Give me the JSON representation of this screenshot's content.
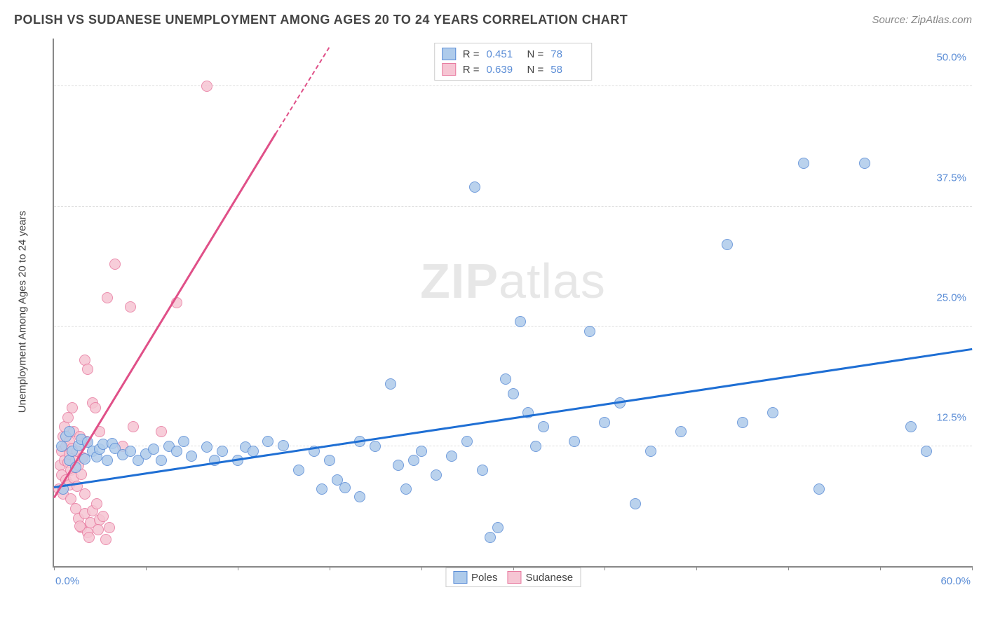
{
  "title": "POLISH VS SUDANESE UNEMPLOYMENT AMONG AGES 20 TO 24 YEARS CORRELATION CHART",
  "source": "Source: ZipAtlas.com",
  "watermark_zip": "ZIP",
  "watermark_atlas": "atlas",
  "ylabel": "Unemployment Among Ages 20 to 24 years",
  "chart": {
    "type": "scatter",
    "background_color": "#ffffff",
    "grid_color": "#dddddd",
    "axis_color": "#888888",
    "tick_label_color": "#5b8dd6",
    "xlim": [
      0,
      60
    ],
    "ylim": [
      0,
      55
    ],
    "x_tick_positions": [
      0,
      6,
      12,
      18,
      24,
      30,
      36,
      42,
      48,
      54,
      60
    ],
    "x_tick_labels": {
      "left": "0.0%",
      "right": "60.0%"
    },
    "y_gridlines": [
      12.5,
      25,
      37.5,
      50
    ],
    "y_tick_labels": [
      "12.5%",
      "25.0%",
      "37.5%",
      "50.0%"
    ],
    "marker_radius": 8,
    "marker_border_width": 1.2,
    "trend_line_width": 3,
    "series": [
      {
        "name": "Poles",
        "fill_color": "#aecbeb",
        "stroke_color": "#5b8dd6",
        "line_color": "#1f6fd4",
        "R": "0.451",
        "N": "78",
        "trend": {
          "x1": 0,
          "y1": 8.1,
          "x2": 60,
          "y2": 22.5
        },
        "points": [
          [
            0.5,
            12.5
          ],
          [
            0.6,
            8.0
          ],
          [
            0.8,
            13.5
          ],
          [
            1.0,
            11.0
          ],
          [
            1.0,
            14.0
          ],
          [
            1.2,
            12.0
          ],
          [
            1.4,
            10.3
          ],
          [
            1.6,
            12.6
          ],
          [
            1.8,
            13.2
          ],
          [
            2.0,
            11.2
          ],
          [
            2.2,
            12.9
          ],
          [
            2.5,
            12.0
          ],
          [
            2.8,
            11.4
          ],
          [
            3.0,
            12.2
          ],
          [
            3.2,
            12.7
          ],
          [
            3.5,
            11.0
          ],
          [
            3.8,
            12.8
          ],
          [
            4.0,
            12.3
          ],
          [
            4.5,
            11.6
          ],
          [
            5.0,
            12.0
          ],
          [
            5.5,
            11.0
          ],
          [
            6.0,
            11.7
          ],
          [
            6.5,
            12.2
          ],
          [
            7.0,
            11.0
          ],
          [
            7.5,
            12.5
          ],
          [
            8.0,
            12.0
          ],
          [
            8.5,
            13.0
          ],
          [
            9.0,
            11.5
          ],
          [
            10.0,
            12.4
          ],
          [
            10.5,
            11.0
          ],
          [
            11.0,
            12.0
          ],
          [
            12.0,
            11.0
          ],
          [
            12.5,
            12.4
          ],
          [
            13.0,
            12.0
          ],
          [
            14.0,
            13.0
          ],
          [
            15.0,
            12.6
          ],
          [
            16.0,
            10.0
          ],
          [
            17.0,
            12.0
          ],
          [
            17.5,
            8.0
          ],
          [
            18.0,
            11.0
          ],
          [
            18.5,
            9.0
          ],
          [
            19.0,
            8.2
          ],
          [
            20.0,
            13.0
          ],
          [
            20.0,
            7.2
          ],
          [
            21.0,
            12.5
          ],
          [
            22.0,
            19.0
          ],
          [
            22.5,
            10.5
          ],
          [
            23.0,
            8.0
          ],
          [
            23.5,
            11.0
          ],
          [
            24.0,
            12.0
          ],
          [
            25.0,
            9.5
          ],
          [
            26.0,
            11.5
          ],
          [
            27.0,
            13.0
          ],
          [
            27.5,
            39.5
          ],
          [
            28.0,
            10.0
          ],
          [
            28.5,
            3.0
          ],
          [
            29.0,
            4.0
          ],
          [
            29.5,
            19.5
          ],
          [
            30.0,
            18.0
          ],
          [
            30.5,
            25.5
          ],
          [
            31.0,
            16.0
          ],
          [
            31.5,
            12.5
          ],
          [
            32.0,
            14.5
          ],
          [
            34.0,
            13.0
          ],
          [
            35.0,
            24.5
          ],
          [
            36.0,
            15.0
          ],
          [
            37.0,
            17.0
          ],
          [
            38.0,
            6.5
          ],
          [
            39.0,
            12.0
          ],
          [
            41.0,
            14.0
          ],
          [
            44.0,
            33.5
          ],
          [
            45.0,
            15.0
          ],
          [
            47.0,
            16.0
          ],
          [
            49.0,
            42.0
          ],
          [
            50.0,
            8.0
          ],
          [
            53.0,
            42.0
          ],
          [
            56.0,
            14.5
          ],
          [
            57.0,
            12.0
          ]
        ]
      },
      {
        "name": "Sudanese",
        "fill_color": "#f6c5d3",
        "stroke_color": "#e87ba0",
        "line_color": "#e05088",
        "R": "0.639",
        "N": "58",
        "trend": {
          "x1": 0,
          "y1": 7.0,
          "x2": 14.5,
          "y2": 45.0
        },
        "trend_dashed": {
          "x1": 14.5,
          "y1": 45.0,
          "x2": 18.0,
          "y2": 54.0
        },
        "points": [
          [
            0.3,
            8.0
          ],
          [
            0.4,
            10.5
          ],
          [
            0.5,
            9.5
          ],
          [
            0.5,
            12.0
          ],
          [
            0.6,
            7.5
          ],
          [
            0.6,
            13.5
          ],
          [
            0.7,
            11.0
          ],
          [
            0.7,
            14.5
          ],
          [
            0.8,
            9.0
          ],
          [
            0.8,
            12.5
          ],
          [
            0.9,
            10.8
          ],
          [
            0.9,
            15.5
          ],
          [
            1.0,
            8.5
          ],
          [
            1.0,
            11.7
          ],
          [
            1.0,
            13.0
          ],
          [
            1.1,
            7.0
          ],
          [
            1.1,
            10.0
          ],
          [
            1.2,
            12.3
          ],
          [
            1.2,
            16.5
          ],
          [
            1.3,
            9.2
          ],
          [
            1.3,
            14.0
          ],
          [
            1.4,
            11.0
          ],
          [
            1.4,
            6.0
          ],
          [
            1.5,
            8.3
          ],
          [
            1.5,
            12.0
          ],
          [
            1.6,
            10.5
          ],
          [
            1.6,
            5.0
          ],
          [
            1.7,
            13.5
          ],
          [
            1.8,
            9.6
          ],
          [
            1.8,
            4.0
          ],
          [
            1.9,
            11.3
          ],
          [
            2.0,
            21.5
          ],
          [
            2.0,
            7.5
          ],
          [
            2.0,
            5.5
          ],
          [
            2.1,
            13.0
          ],
          [
            2.2,
            3.5
          ],
          [
            2.2,
            20.5
          ],
          [
            2.4,
            4.5
          ],
          [
            2.5,
            5.8
          ],
          [
            2.5,
            17.0
          ],
          [
            2.7,
            16.5
          ],
          [
            2.8,
            6.5
          ],
          [
            3.0,
            4.8
          ],
          [
            3.0,
            14.0
          ],
          [
            3.2,
            5.2
          ],
          [
            3.4,
            2.8
          ],
          [
            3.5,
            28.0
          ],
          [
            3.6,
            4.0
          ],
          [
            4.0,
            31.5
          ],
          [
            4.5,
            12.5
          ],
          [
            5.0,
            27.0
          ],
          [
            5.2,
            14.5
          ],
          [
            7.0,
            14.0
          ],
          [
            8.0,
            27.5
          ],
          [
            10.0,
            50.0
          ],
          [
            2.3,
            3.0
          ],
          [
            1.7,
            4.2
          ],
          [
            2.9,
            3.8
          ]
        ]
      }
    ],
    "stats_box": {
      "R_label": "R  =",
      "N_label": "N  ="
    },
    "legend": {
      "items": [
        "Poles",
        "Sudanese"
      ]
    }
  }
}
